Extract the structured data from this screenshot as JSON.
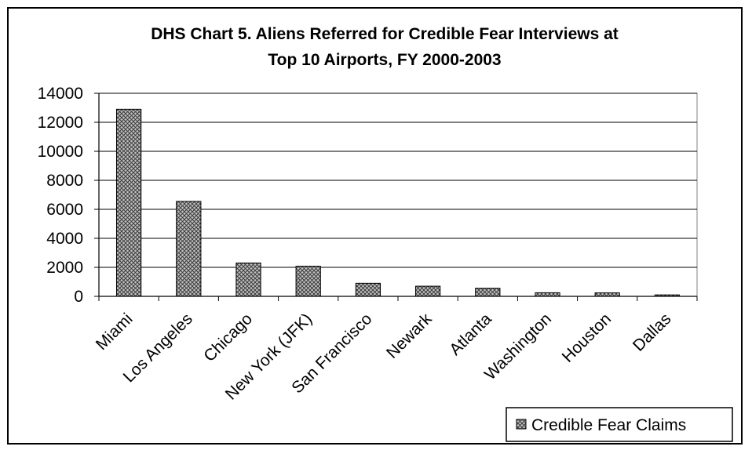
{
  "chart_data": {
    "type": "bar",
    "title_lines": [
      "DHS Chart 5. Aliens Referred for Credible Fear Interviews at",
      "Top 10 Airports, FY 2000-2003"
    ],
    "xlabel": "",
    "ylabel": "",
    "ylim": [
      0,
      14000
    ],
    "yticks": [
      0,
      2000,
      4000,
      6000,
      8000,
      10000,
      12000,
      14000
    ],
    "grid": true,
    "legend_position": "bottom-right",
    "categories": [
      "Miami",
      "Los Angeles",
      "Chicago",
      "New York (JFK)",
      "San Francisco",
      "Newark",
      "Atlanta",
      "Washington",
      "Houston",
      "Dallas"
    ],
    "series": [
      {
        "name": "Credible Fear Claims",
        "values": [
          12900,
          6550,
          2300,
          2080,
          900,
          700,
          560,
          250,
          240,
          100
        ]
      }
    ],
    "colors": {
      "bar_fill": "#bcbcbc",
      "bar_pattern": "#3a3a3a",
      "gridline": "#000000",
      "axis": "#000000"
    }
  }
}
